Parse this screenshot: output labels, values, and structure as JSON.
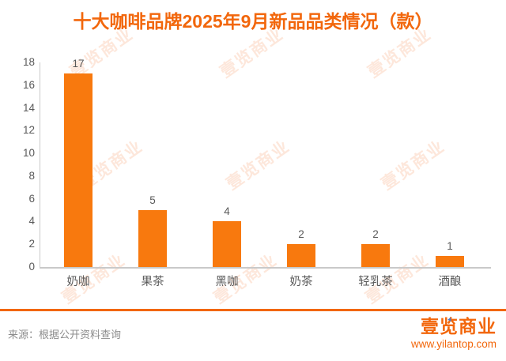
{
  "title": "十大咖啡品牌2025年9月新品品类情况（款）",
  "chart_data": {
    "type": "bar",
    "categories": [
      "奶咖",
      "果茶",
      "黑咖",
      "奶茶",
      "轻乳茶",
      "酒酿"
    ],
    "values": [
      17,
      5,
      4,
      2,
      2,
      1
    ],
    "title": "十大咖啡品牌2025年9月新品品类情况（款）",
    "xlabel": "",
    "ylabel": "",
    "ylim": [
      0,
      18
    ],
    "yticks": [
      0,
      2,
      4,
      6,
      8,
      10,
      12,
      14,
      16,
      18
    ],
    "grid": false,
    "legend": "none",
    "value_labels_shown": true,
    "bar_color": "#F8790E"
  },
  "watermark": {
    "text": "壹览商业",
    "color": "rgba(243,108,33,0.16)"
  },
  "footer": {
    "source": "来源：根据公开资料查询",
    "logo_text": "壹览商业",
    "logo_url": "www.yilantop.com"
  },
  "colors": {
    "accent": "#F2670C",
    "bar": "#F8790E",
    "axis_text": "#595959",
    "value_text": "#595959",
    "source_text": "#8C8C8C",
    "axis_line": "#C9C9C9",
    "cursor_blue": "#4A7BD0"
  }
}
